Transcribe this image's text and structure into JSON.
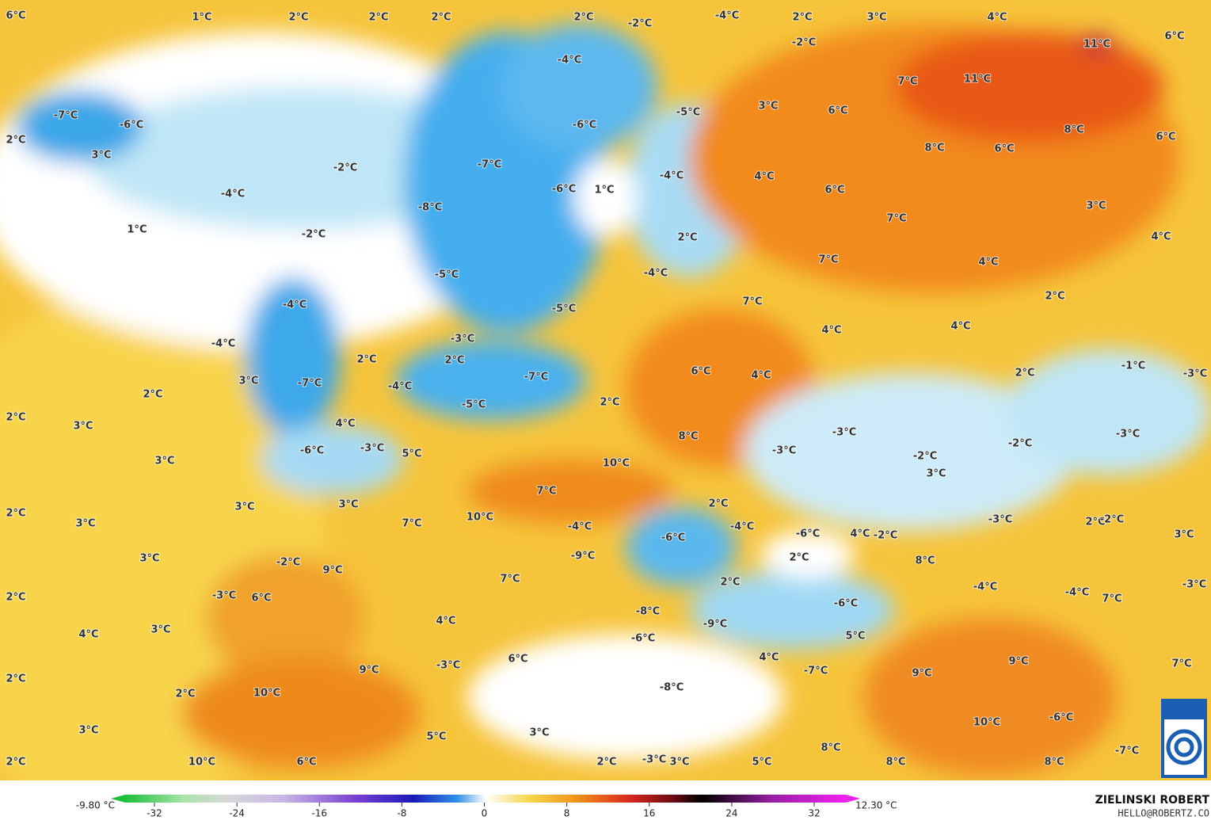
{
  "map": {
    "labels": [
      "6°C",
      "1°C",
      "2°C",
      "2°C",
      "2°C",
      "2°C",
      "-2°C",
      "-4°C",
      "2°C",
      "3°C",
      "4°C",
      "6°C",
      "-2°C",
      "11°C",
      "-4°C",
      "7°C",
      "11°C",
      "-7°C",
      "-6°C",
      "3°C",
      "-5°C",
      "6°C",
      "-6°C",
      "8°C",
      "2°C",
      "3°C",
      "8°C",
      "6°C",
      "6°C",
      "-7°C",
      "-2°C",
      "-4°C",
      "4°C",
      "-6°C",
      "1°C",
      "-4°C",
      "6°C",
      "-8°C",
      "3°C",
      "7°C",
      "1°C",
      "-2°C",
      "2°C",
      "4°C",
      "7°C",
      "4°C",
      "-5°C",
      "-4°C",
      "2°C",
      "-4°C",
      "-5°C",
      "7°C",
      "4°C",
      "4°C",
      "-3°C",
      "-4°C",
      "2°C",
      "2°C",
      "-1°C",
      "-3°C",
      "3°C",
      "-7°C",
      "-7°C",
      "6°C",
      "4°C",
      "2°C",
      "2°C",
      "-4°C",
      "2°C",
      "3°C",
      "-5°C",
      "2°C",
      "4°C",
      "8°C",
      "-3°C",
      "-3°C",
      "-2°C",
      "-6°C",
      "-3°C",
      "5°C",
      "-3°C",
      "-2°C",
      "3°C",
      "10°C",
      "3°C",
      "7°C",
      "3°C",
      "3°C",
      "2°C",
      "2°C",
      "10°C",
      "-3°C",
      "2°C",
      "-2°C",
      "3°C",
      "7°C",
      "-4°C",
      "-4°C",
      "-6°C",
      "4°C",
      "-2°C",
      "3°C",
      "-6°C",
      "2°C",
      "3°C",
      "-2°C",
      "-9°C",
      "8°C",
      "9°C",
      "-3°C",
      "6°C",
      "7°C",
      "2°C",
      "-4°C",
      "-4°C",
      "7°C",
      "-3°C",
      "2°C",
      "-6°C",
      "-8°C",
      "4°C",
      "3°C",
      "-9°C",
      "4°C",
      "5°C",
      "-6°C",
      "6°C",
      "-3°C",
      "4°C",
      "9°C",
      "7°C",
      "9°C",
      "-7°C",
      "9°C",
      "2°C",
      "-8°C",
      "10°C",
      "2°C",
      "3°C",
      "3°C",
      "5°C",
      "10°C",
      "-6°C",
      "8°C",
      "-7°C",
      "10°C",
      "6°C",
      "2°C",
      "-3°C",
      "3°C",
      "5°C",
      "8°C",
      "8°C",
      "2°C"
    ],
    "colorbar": {
      "min_label": "-9.80 °C",
      "max_label": "12.30 °C",
      "ticks": [
        -32,
        -24,
        -16,
        -8,
        0,
        8,
        16,
        24,
        32
      ]
    },
    "credit": {
      "name": "ZIELINSKI ROBERT",
      "email": "HELLO@ROBERTZ.CO"
    },
    "logo": "DWD"
  }
}
